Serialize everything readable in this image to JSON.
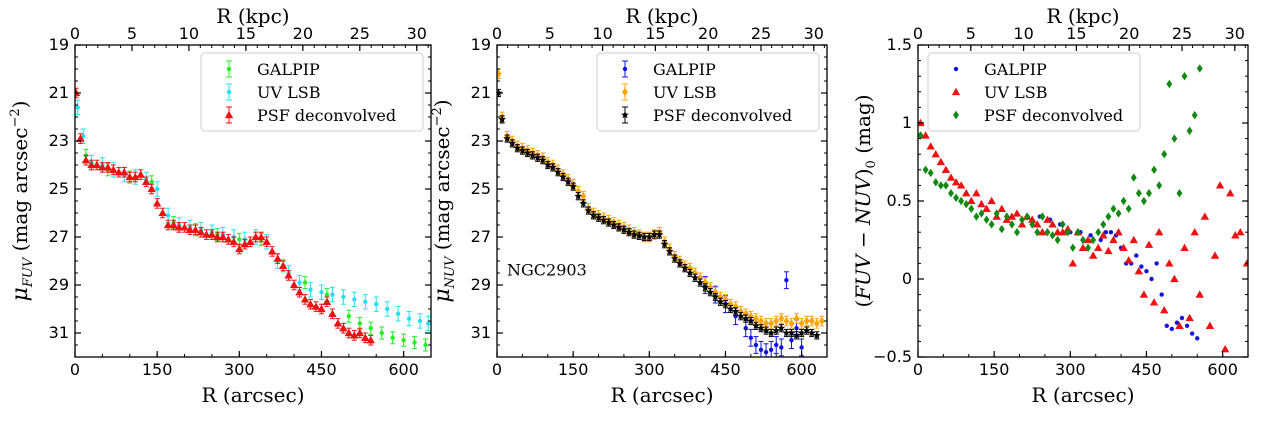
{
  "panels": [
    {
      "id": "fuv",
      "type": "scatter",
      "xlabel": "R (arcsec)",
      "top_xlabel": "R (kpc)",
      "ylabel": "μFUV (mag arcsec−2)",
      "ylabel_parts": {
        "mu": "μ",
        "sub": "FUV",
        "rest": " (mag arcsec",
        "exp": "−2",
        "close": ")"
      },
      "xlim": [
        0,
        650
      ],
      "ylim": [
        32,
        19
      ],
      "xticks": [
        0,
        150,
        300,
        450,
        600
      ],
      "yticks": [
        19,
        21,
        23,
        25,
        27,
        29,
        31
      ],
      "top_ticks": [
        0,
        5,
        10,
        15,
        20,
        25,
        30
      ],
      "arcsec_per_kpc": 20.8,
      "legend_position": "top-right",
      "annotation": "",
      "series": [
        {
          "name": "GALPIP",
          "color": "#22ee22",
          "marker": "dot",
          "err": 0.25,
          "x": [
            20,
            60,
            100,
            140,
            180,
            220,
            260,
            300,
            340,
            380,
            420,
            460,
            500,
            520,
            540,
            560,
            580,
            600,
            620,
            640
          ],
          "y": [
            23.6,
            24.2,
            24.5,
            24.7,
            26.4,
            26.7,
            26.9,
            27.1,
            27.1,
            28.2,
            28.9,
            29.4,
            30.3,
            30.6,
            30.8,
            31.0,
            31.2,
            31.3,
            31.4,
            31.5
          ]
        },
        {
          "name": "UV LSB",
          "color": "#22e0f0",
          "marker": "dot",
          "err": 0.3,
          "x": [
            5,
            15,
            30,
            50,
            70,
            90,
            110,
            130,
            150,
            170,
            190,
            210,
            230,
            250,
            270,
            290,
            310,
            330,
            350,
            370,
            390,
            410,
            430,
            450,
            470,
            490,
            510,
            530,
            550,
            570,
            590,
            610,
            630,
            645
          ],
          "y": [
            21.6,
            22.8,
            23.9,
            24.0,
            24.2,
            24.4,
            24.5,
            24.6,
            25.0,
            26.1,
            26.5,
            26.6,
            26.7,
            26.8,
            26.9,
            27.0,
            27.1,
            27.0,
            27.2,
            28.0,
            28.5,
            28.9,
            29.2,
            29.3,
            29.4,
            29.5,
            29.6,
            29.7,
            29.8,
            30.0,
            30.2,
            30.4,
            30.5,
            30.6
          ]
        },
        {
          "name": "PSF deconvolved",
          "color": "#ee1111",
          "marker": "triangle",
          "err": 0.2,
          "x": [
            2,
            10,
            20,
            30,
            40,
            50,
            60,
            70,
            80,
            90,
            100,
            110,
            120,
            130,
            140,
            150,
            160,
            170,
            180,
            190,
            200,
            210,
            220,
            230,
            240,
            250,
            260,
            270,
            280,
            290,
            300,
            310,
            320,
            330,
            340,
            350,
            360,
            370,
            380,
            390,
            400,
            410,
            420,
            430,
            440,
            450,
            460,
            470,
            480,
            490,
            500,
            510,
            520,
            530,
            540
          ],
          "y": [
            21.0,
            22.9,
            23.8,
            24.0,
            24.0,
            24.1,
            24.1,
            24.2,
            24.3,
            24.3,
            24.5,
            24.5,
            24.4,
            24.7,
            25.0,
            25.6,
            26.0,
            26.5,
            26.5,
            26.6,
            26.6,
            26.7,
            26.7,
            26.8,
            26.9,
            26.9,
            27.0,
            27.0,
            27.1,
            27.2,
            27.5,
            27.3,
            27.2,
            27.0,
            27.0,
            27.2,
            27.6,
            27.9,
            28.2,
            28.6,
            29.0,
            29.3,
            29.6,
            29.8,
            29.9,
            30.0,
            29.7,
            30.2,
            30.6,
            30.8,
            31.0,
            31.1,
            31.0,
            31.2,
            31.3
          ]
        }
      ]
    },
    {
      "id": "nuv",
      "type": "scatter",
      "xlabel": "R (arcsec)",
      "top_xlabel": "R (kpc)",
      "ylabel": "μNUV (mag arcsec−2)",
      "ylabel_parts": {
        "mu": "μ",
        "sub": "NUV",
        "rest": " (mag arcsec",
        "exp": "−2",
        "close": ")"
      },
      "xlim": [
        0,
        650
      ],
      "ylim": [
        32,
        19
      ],
      "xticks": [
        0,
        150,
        300,
        450,
        600
      ],
      "yticks": [
        19,
        21,
        23,
        25,
        27,
        29,
        31
      ],
      "top_ticks": [
        0,
        5,
        10,
        15,
        20,
        25,
        30
      ],
      "arcsec_per_kpc": 20.8,
      "legend_position": "top-right",
      "annotation": "NGC2903",
      "series": [
        {
          "name": "GALPIP",
          "color": "#1111dd",
          "marker": "dot",
          "err": 0.35,
          "x": [
            410,
            430,
            450,
            470,
            490,
            500,
            510,
            520,
            530,
            540,
            550,
            560,
            570,
            580,
            590,
            600
          ],
          "y": [
            29.0,
            29.4,
            29.8,
            30.3,
            30.8,
            31.2,
            31.5,
            31.7,
            31.8,
            31.7,
            31.5,
            31.6,
            28.8,
            31.3,
            30.8,
            31.6
          ]
        },
        {
          "name": "UV LSB",
          "color": "#ffa500",
          "marker": "diamond",
          "err": 0.2,
          "x": [
            3,
            10,
            20,
            30,
            40,
            50,
            60,
            70,
            80,
            90,
            100,
            110,
            120,
            130,
            140,
            150,
            160,
            170,
            180,
            190,
            200,
            210,
            220,
            230,
            240,
            250,
            260,
            270,
            280,
            290,
            300,
            310,
            320,
            330,
            340,
            350,
            360,
            370,
            380,
            390,
            400,
            410,
            420,
            430,
            440,
            450,
            460,
            470,
            480,
            490,
            500,
            510,
            520,
            530,
            540,
            550,
            560,
            570,
            580,
            590,
            600,
            610,
            620,
            630,
            640
          ],
          "y": [
            20.2,
            22.0,
            22.8,
            23.0,
            23.2,
            23.3,
            23.4,
            23.5,
            23.6,
            23.7,
            23.9,
            24.0,
            24.2,
            24.4,
            24.6,
            24.8,
            25.1,
            25.3,
            25.8,
            26.0,
            26.1,
            26.2,
            26.3,
            26.4,
            26.5,
            26.6,
            26.7,
            26.8,
            26.9,
            27.0,
            27.0,
            26.9,
            26.8,
            27.2,
            27.5,
            27.8,
            28.0,
            28.2,
            28.3,
            28.5,
            28.7,
            28.9,
            29.1,
            29.3,
            29.5,
            29.6,
            29.8,
            29.9,
            30.1,
            30.2,
            30.3,
            30.4,
            30.5,
            30.6,
            30.6,
            30.5,
            30.4,
            30.5,
            30.6,
            30.4,
            30.6,
            30.5,
            30.5,
            30.6,
            30.5
          ]
        },
        {
          "name": "PSF deconvolved",
          "color": "#000000",
          "marker": "star",
          "err": 0.15,
          "x": [
            3,
            10,
            20,
            30,
            40,
            50,
            60,
            70,
            80,
            90,
            100,
            110,
            120,
            130,
            140,
            150,
            160,
            170,
            180,
            190,
            200,
            210,
            220,
            230,
            240,
            250,
            260,
            270,
            280,
            290,
            300,
            310,
            320,
            330,
            340,
            350,
            360,
            370,
            380,
            390,
            400,
            410,
            420,
            430,
            440,
            450,
            460,
            470,
            480,
            490,
            500,
            510,
            520,
            530,
            540,
            550,
            560,
            570,
            580,
            590,
            600,
            610,
            620,
            630
          ],
          "y": [
            21.0,
            22.1,
            22.9,
            23.1,
            23.3,
            23.4,
            23.5,
            23.6,
            23.7,
            23.8,
            24.0,
            24.1,
            24.3,
            24.5,
            24.7,
            24.9,
            25.3,
            25.6,
            25.9,
            26.1,
            26.2,
            26.3,
            26.4,
            26.5,
            26.6,
            26.7,
            26.8,
            26.9,
            26.95,
            27.0,
            27.0,
            26.9,
            26.9,
            27.3,
            27.6,
            27.9,
            28.1,
            28.3,
            28.5,
            28.7,
            28.9,
            29.1,
            29.3,
            29.5,
            29.7,
            29.8,
            30.0,
            30.1,
            30.3,
            30.4,
            30.5,
            30.7,
            30.8,
            30.9,
            31.0,
            30.9,
            30.8,
            31.0,
            31.0,
            31.1,
            31.0,
            30.9,
            31.0,
            31.1
          ]
        }
      ]
    },
    {
      "id": "color",
      "type": "scatter",
      "xlabel": "R (arcsec)",
      "top_xlabel": "R (kpc)",
      "ylabel": "(FUV − NUV)0 (mag)",
      "ylabel_parts": {
        "pre": "(",
        "it": "FUV − NUV",
        "post": ")",
        "sub": "0",
        "rest": " (mag)"
      },
      "xlim": [
        0,
        650
      ],
      "ylim": [
        -0.5,
        1.5
      ],
      "xticks": [
        0,
        150,
        300,
        450,
        600
      ],
      "yticks": [
        -0.5,
        0.0,
        0.5,
        1.0,
        1.5
      ],
      "top_ticks": [
        0,
        5,
        10,
        15,
        20,
        25,
        30
      ],
      "arcsec_per_kpc": 20.8,
      "legend_position": "top-left",
      "annotation": "",
      "series": [
        {
          "name": "GALPIP",
          "color": "#1111dd",
          "marker": "dot",
          "err": 0,
          "x": [
            240,
            260,
            280,
            300,
            320,
            340,
            360,
            370,
            380,
            390,
            400,
            410,
            420,
            430,
            440,
            450,
            460,
            470,
            480,
            490,
            500,
            510,
            520,
            530,
            540,
            550
          ],
          "y": [
            0.4,
            0.38,
            0.35,
            0.3,
            0.3,
            0.28,
            0.25,
            0.3,
            0.3,
            0.28,
            0.2,
            0.1,
            0.1,
            0.15,
            0.08,
            0.05,
            0.0,
            0.1,
            -0.1,
            -0.3,
            -0.32,
            -0.28,
            -0.25,
            -0.3,
            -0.35,
            -0.38
          ]
        },
        {
          "name": "UV LSB",
          "color": "#ee1111",
          "marker": "triangle",
          "err": 0,
          "x": [
            5,
            15,
            25,
            35,
            45,
            55,
            65,
            75,
            85,
            95,
            105,
            115,
            125,
            135,
            145,
            155,
            165,
            175,
            185,
            195,
            205,
            215,
            225,
            235,
            245,
            255,
            265,
            275,
            285,
            295,
            305,
            315,
            325,
            335,
            345,
            355,
            365,
            375,
            385,
            395,
            405,
            415,
            425,
            435,
            445,
            455,
            465,
            475,
            485,
            495,
            505,
            515,
            525,
            535,
            545,
            555,
            565,
            575,
            585,
            595,
            605,
            615,
            625,
            635,
            648
          ],
          "y": [
            1.0,
            0.92,
            0.85,
            0.8,
            0.75,
            0.7,
            0.65,
            0.62,
            0.6,
            0.55,
            0.5,
            0.55,
            0.48,
            0.45,
            0.5,
            0.4,
            0.45,
            0.38,
            0.4,
            0.42,
            0.35,
            0.4,
            0.38,
            0.35,
            0.3,
            0.38,
            0.35,
            0.3,
            0.3,
            0.32,
            0.1,
            0.3,
            0.2,
            0.25,
            0.15,
            0.2,
            0.28,
            0.18,
            0.25,
            0.3,
            0.2,
            0.12,
            0.25,
            0.05,
            -0.1,
            0.22,
            -0.15,
            0.3,
            -0.2,
            0.1,
            0.0,
            -0.3,
            0.2,
            -0.25,
            0.3,
            -0.1,
            0.4,
            -0.3,
            0.15,
            0.6,
            -0.45,
            0.55,
            0.28,
            0.3,
            0.1
          ]
        },
        {
          "name": "PSF deconvolved",
          "color": "#118811",
          "marker": "diamond",
          "err": 0,
          "x": [
            5,
            15,
            25,
            35,
            45,
            55,
            65,
            75,
            85,
            95,
            105,
            115,
            125,
            135,
            145,
            155,
            165,
            175,
            185,
            195,
            205,
            215,
            225,
            235,
            245,
            255,
            265,
            275,
            285,
            295,
            305,
            315,
            325,
            335,
            345,
            355,
            365,
            375,
            385,
            395,
            405,
            415,
            425,
            435,
            445,
            455,
            465,
            475,
            485,
            495,
            505,
            515,
            525,
            535,
            545,
            555
          ],
          "y": [
            0.92,
            0.7,
            0.68,
            0.62,
            0.6,
            0.6,
            0.55,
            0.52,
            0.5,
            0.48,
            0.45,
            0.4,
            0.42,
            0.38,
            0.35,
            0.42,
            0.32,
            0.4,
            0.35,
            0.3,
            0.38,
            0.4,
            0.35,
            0.3,
            0.4,
            0.3,
            0.28,
            0.25,
            0.35,
            0.3,
            0.2,
            0.3,
            0.25,
            0.2,
            0.25,
            0.3,
            0.35,
            0.4,
            0.45,
            0.42,
            0.5,
            0.45,
            0.65,
            0.55,
            0.5,
            0.55,
            0.7,
            0.6,
            0.8,
            1.25,
            0.9,
            0.55,
            1.3,
            0.95,
            1.05,
            1.35
          ]
        }
      ]
    }
  ]
}
